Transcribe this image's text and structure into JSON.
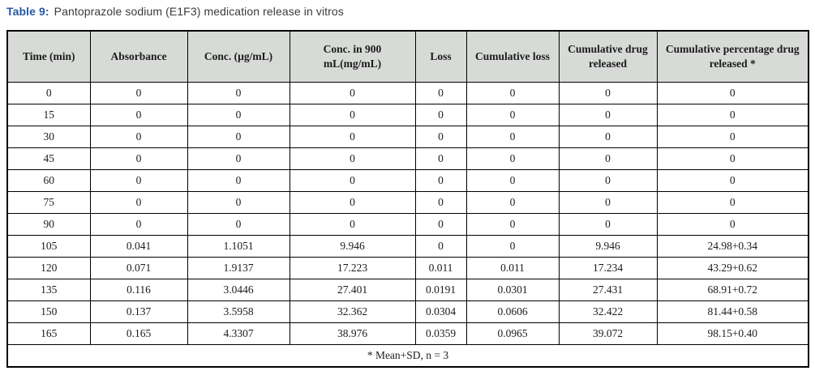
{
  "caption": {
    "label": "Table 9:",
    "text": "Pantoprazole sodium (E1F3) medication release in vitros"
  },
  "table": {
    "headers": [
      "Time (min)",
      "Absorbance",
      "Conc. (µg/mL)",
      "Conc. in 900 mL(mg/mL)",
      "Loss",
      "Cumulative loss",
      "Cumulative drug released",
      "Cumulative percentage drug released *"
    ],
    "rows": [
      [
        "0",
        "0",
        "0",
        "0",
        "0",
        "0",
        "0",
        "0"
      ],
      [
        "15",
        "0",
        "0",
        "0",
        "0",
        "0",
        "0",
        "0"
      ],
      [
        "30",
        "0",
        "0",
        "0",
        "0",
        "0",
        "0",
        "0"
      ],
      [
        "45",
        "0",
        "0",
        "0",
        "0",
        "0",
        "0",
        "0"
      ],
      [
        "60",
        "0",
        "0",
        "0",
        "0",
        "0",
        "0",
        "0"
      ],
      [
        "75",
        "0",
        "0",
        "0",
        "0",
        "0",
        "0",
        "0"
      ],
      [
        "90",
        "0",
        "0",
        "0",
        "0",
        "0",
        "0",
        "0"
      ],
      [
        "105",
        "0.041",
        "1.1051",
        "9.946",
        "0",
        "0",
        "9.946",
        "24.98+0.34"
      ],
      [
        "120",
        "0.071",
        "1.9137",
        "17.223",
        "0.011",
        "0.011",
        "17.234",
        "43.29+0.62"
      ],
      [
        "135",
        "0.116",
        "3.0446",
        "27.401",
        "0.0191",
        "0.0301",
        "27.431",
        "68.91+0.72"
      ],
      [
        "150",
        "0.137",
        "3.5958",
        "32.362",
        "0.0304",
        "0.0606",
        "32.422",
        "81.44+0.58"
      ],
      [
        "165",
        "0.165",
        "4.3307",
        "38.976",
        "0.0359",
        "0.0965",
        "39.072",
        "98.15+0.40"
      ]
    ],
    "footnote": "* Mean+SD, n = 3"
  },
  "colors": {
    "caption_accent": "#2458a7",
    "header_background": "#d7dad7",
    "border": "#000000",
    "text": "#1c1c1c"
  }
}
